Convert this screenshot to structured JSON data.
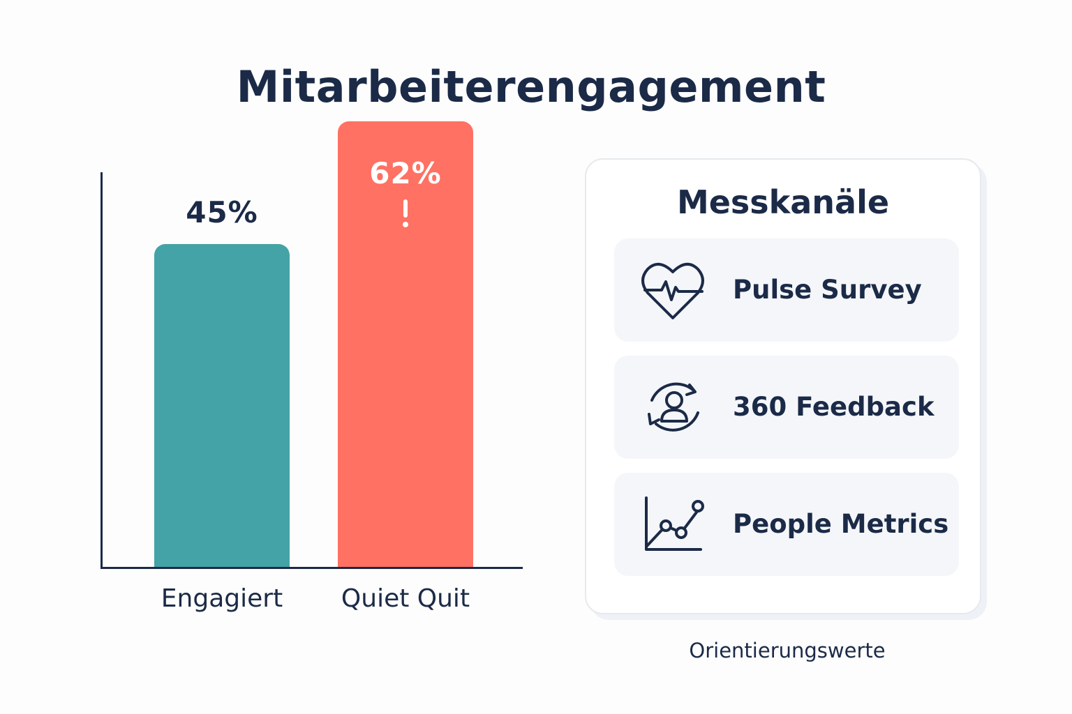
{
  "title": "Mitarbeiterengagement",
  "chart_data": {
    "type": "bar",
    "categories": [
      "Engagiert",
      "Quiet Quit"
    ],
    "values": [
      45,
      62
    ],
    "value_labels": [
      "45%",
      "62%"
    ],
    "colors": [
      "#44a3a6",
      "#ff7163"
    ],
    "warning_on": "Quiet Quit",
    "ylim": [
      0,
      100
    ]
  },
  "panel": {
    "title": "Messkanäle",
    "channels": [
      {
        "label": "Pulse Survey",
        "icon": "heart-pulse-icon"
      },
      {
        "label": "360 Feedback",
        "icon": "person-cycle-icon"
      },
      {
        "label": "People Metrics",
        "icon": "line-chart-icon"
      }
    ]
  },
  "footnote": "Orientierungswerte"
}
